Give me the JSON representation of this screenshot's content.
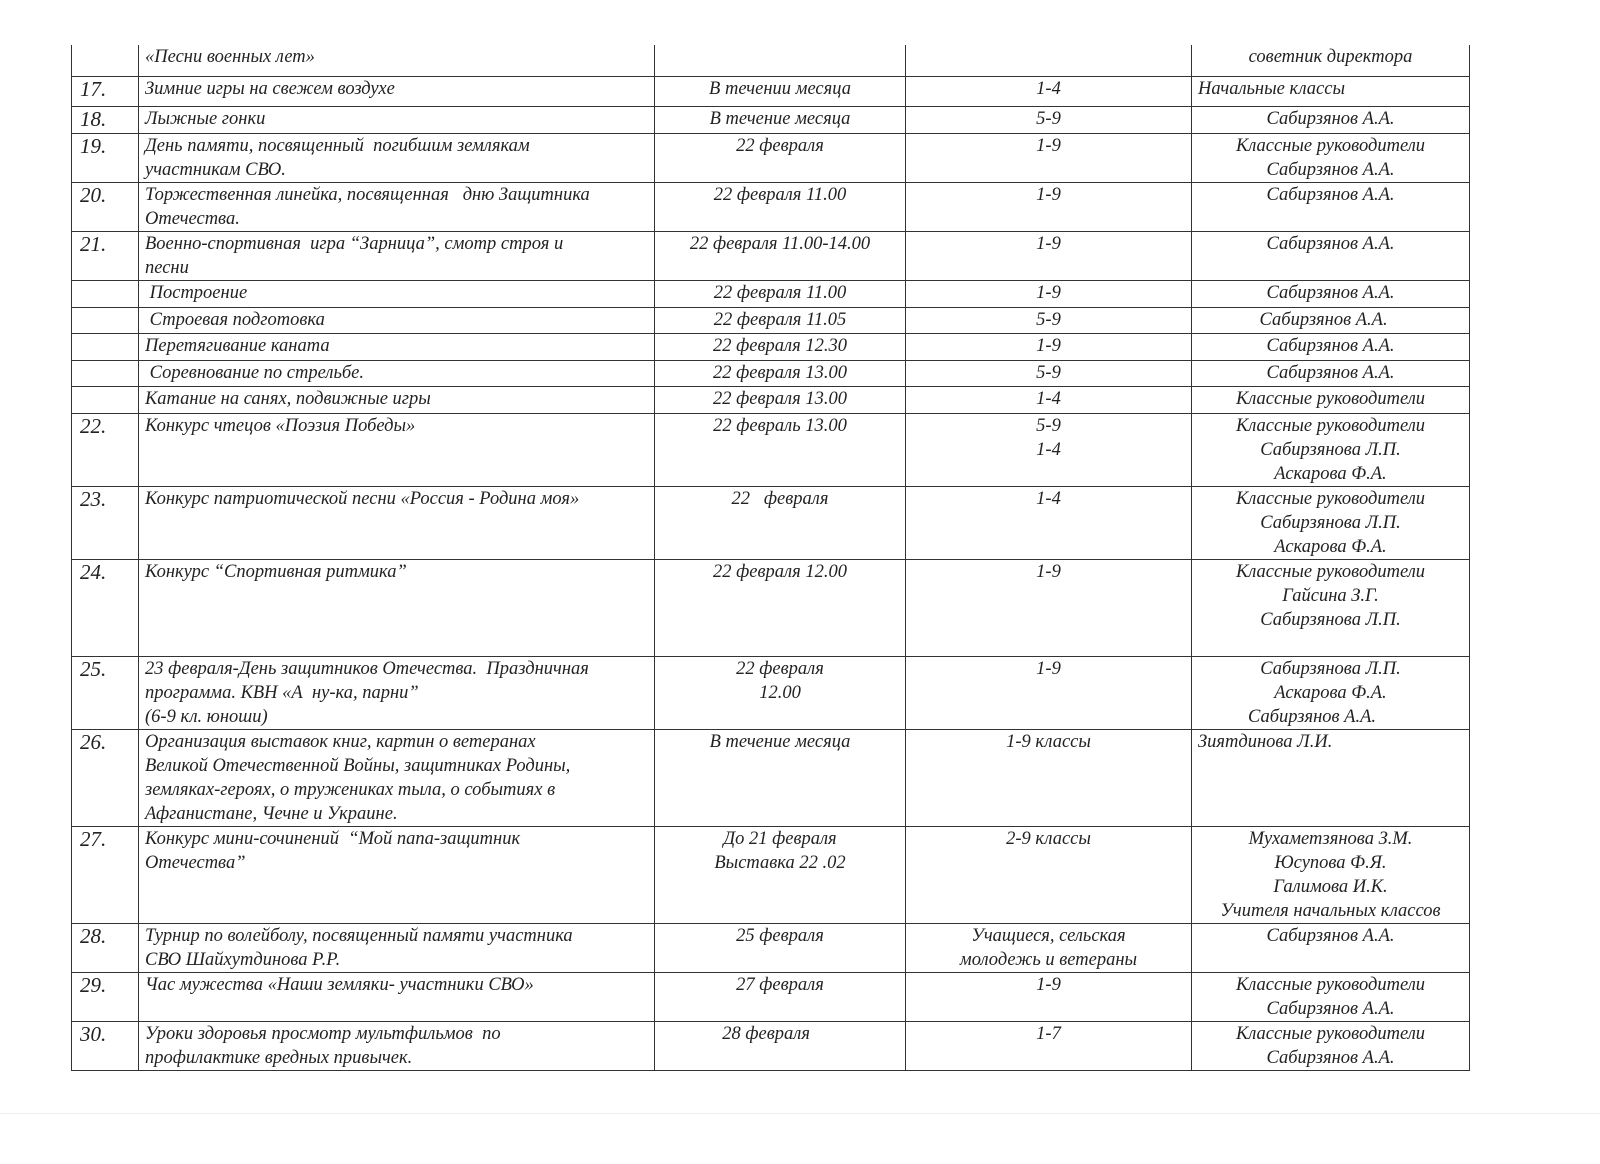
{
  "rows": [
    {
      "num": "",
      "event": [
        "«Песни военных лет»"
      ],
      "date": [],
      "classes": [],
      "responsible": [
        "советник директора"
      ]
    },
    {
      "num": "17.",
      "event": [
        "Зимние игры на свежем воздухе"
      ],
      "date": [
        "В течении месяца"
      ],
      "classes": [
        "1-4"
      ],
      "responsible": [
        "Начальные классы"
      ],
      "resp_left": true
    },
    {
      "num": "18.",
      "event": [
        "Лыжные гонки"
      ],
      "date": [
        "В течение месяца"
      ],
      "classes": [
        "5-9"
      ],
      "responsible": [
        "Сабирзянов А.А."
      ]
    },
    {
      "num": "19.",
      "event": [
        "День памяти, посвященный  погибшим землякам",
        "участникам СВО."
      ],
      "date": [
        "22 февраля"
      ],
      "classes": [
        "1-9"
      ],
      "responsible": [
        "Классные руководители",
        "Сабирзянов А.А."
      ]
    },
    {
      "num": "20.",
      "event": [
        "Торжественная линейка, посвященная   дню Защитника",
        "Отечества."
      ],
      "date": [
        "22 февраля 11.00"
      ],
      "classes": [
        "1-9"
      ],
      "responsible": [
        "Сабирзянов А.А."
      ]
    },
    {
      "num": "21.",
      "event": [
        "Военно-спортивная  игра “Зарница”, смотр строя и",
        "песни"
      ],
      "date": [
        "22 февраля 11.00-14.00"
      ],
      "classes": [
        "1-9"
      ],
      "responsible": [
        "Сабирзянов А.А."
      ]
    },
    {
      "num": "",
      "event": [
        " Построение"
      ],
      "date": [
        "22 февраля 11.00"
      ],
      "classes": [
        "1-9"
      ],
      "responsible": [
        "Сабирзянов А.А."
      ]
    },
    {
      "num": "",
      "event": [
        " Строевая подготовка"
      ],
      "date": [
        "22 февраля 11.05"
      ],
      "classes": [
        "5-9"
      ],
      "responsible": [
        "Сабирзянов А.А.   "
      ]
    },
    {
      "num": "",
      "event": [
        "Перетягивание каната"
      ],
      "date": [
        "22 февраля 12.30"
      ],
      "classes": [
        "1-9"
      ],
      "responsible": [
        "Сабирзянов А.А."
      ]
    },
    {
      "num": "",
      "event": [
        " Соревнование по стрельбе."
      ],
      "date": [
        "22 февраля 13.00"
      ],
      "classes": [
        "5-9"
      ],
      "responsible": [
        "Сабирзянов А.А."
      ]
    },
    {
      "num": "",
      "event": [
        "Катание на санях, подвижные игры"
      ],
      "date": [
        "22 февраля 13.00"
      ],
      "classes": [
        "1-4"
      ],
      "responsible": [
        "Классные руководители"
      ]
    },
    {
      "num": "22.",
      "event": [
        "Конкурс чтецов «Поэзия Победы»"
      ],
      "date": [
        "22 февраль 13.00"
      ],
      "classes": [
        "5-9",
        "1-4"
      ],
      "responsible": [
        "Классные руководители",
        "Сабирзянова Л.П.",
        "Аскарова Ф.А."
      ]
    },
    {
      "num": "23.",
      "event": [
        "Конкурс патриотической песни «Россия - Родина моя»"
      ],
      "date": [
        "22   февраля"
      ],
      "classes": [
        "1-4"
      ],
      "responsible": [
        "Классные руководители",
        "Сабирзянова Л.П.",
        "Аскарова Ф.А."
      ]
    },
    {
      "num": "24.",
      "event": [
        "Конкурс “Спортивная ритмика”"
      ],
      "date": [
        "22 февраля 12.00"
      ],
      "classes": [
        "1-9"
      ],
      "responsible": [
        "Классные руководители",
        "Гайсина З.Г.",
        "Сабирзянова Л.П."
      ]
    },
    {
      "num": "25.",
      "event": [
        "23 февраля-День защитников Отечества.  Праздничная",
        "программа. КВН «А  ну-ка, парни”",
        "(6-9 кл. юноши)"
      ],
      "date": [
        "22 февраля",
        "12.00"
      ],
      "classes": [
        "1-9"
      ],
      "responsible": [
        "Сабирзянова Л.П.",
        "Аскарова Ф.А.",
        "Сабирзянов А.А.        "
      ]
    },
    {
      "num": "26.",
      "event": [
        "Организация выставок книг, картин о ветеранах",
        "Великой Отечественной Войны, защитниках Родины,",
        "земляках-героях, о тружениках тыла, о событиях в",
        "Афганистане, Чечне и Украине."
      ],
      "date": [
        "В течение месяца"
      ],
      "classes": [
        "1-9 классы"
      ],
      "responsible": [
        "Зиятдинова Л.И."
      ],
      "resp_left": true
    },
    {
      "num": "27.",
      "event": [
        "Конкурс мини-сочинений  “Мой папа-защитник",
        "Отечества”"
      ],
      "date": [
        "До 21 февраля",
        "Выставка 22 .02"
      ],
      "classes": [
        "2-9 классы"
      ],
      "responsible": [
        "Мухаметзянова З.М.",
        "Юсупова Ф.Я.",
        "Галимова И.К.",
        "Учителя начальных классов"
      ]
    },
    {
      "num": "28.",
      "event": [
        "Турнир по волейболу, посвященный памяти участника",
        "СВО Шайхутдинова Р.Р."
      ],
      "date": [
        "25 февраля"
      ],
      "classes": [
        "Учащиеся, сельская",
        "молодежь и ветераны"
      ],
      "responsible": [
        "Сабирзянов А.А."
      ]
    },
    {
      "num": "29.",
      "event": [
        "Час мужества «Наши земляки- участники СВО»"
      ],
      "date": [
        "27 февраля"
      ],
      "classes": [
        "1-9"
      ],
      "responsible": [
        "Классные руководители",
        "Сабирзянов А.А."
      ]
    },
    {
      "num": "30.",
      "event": [
        "Уроки здоровья просмотр мультфильмов  по",
        "профилактике вредных привычек."
      ],
      "date": [
        "28 февраля      "
      ],
      "classes": [
        "1-7"
      ],
      "responsible": [
        "Классные руководители",
        "Сабирзянов А.А."
      ]
    }
  ]
}
